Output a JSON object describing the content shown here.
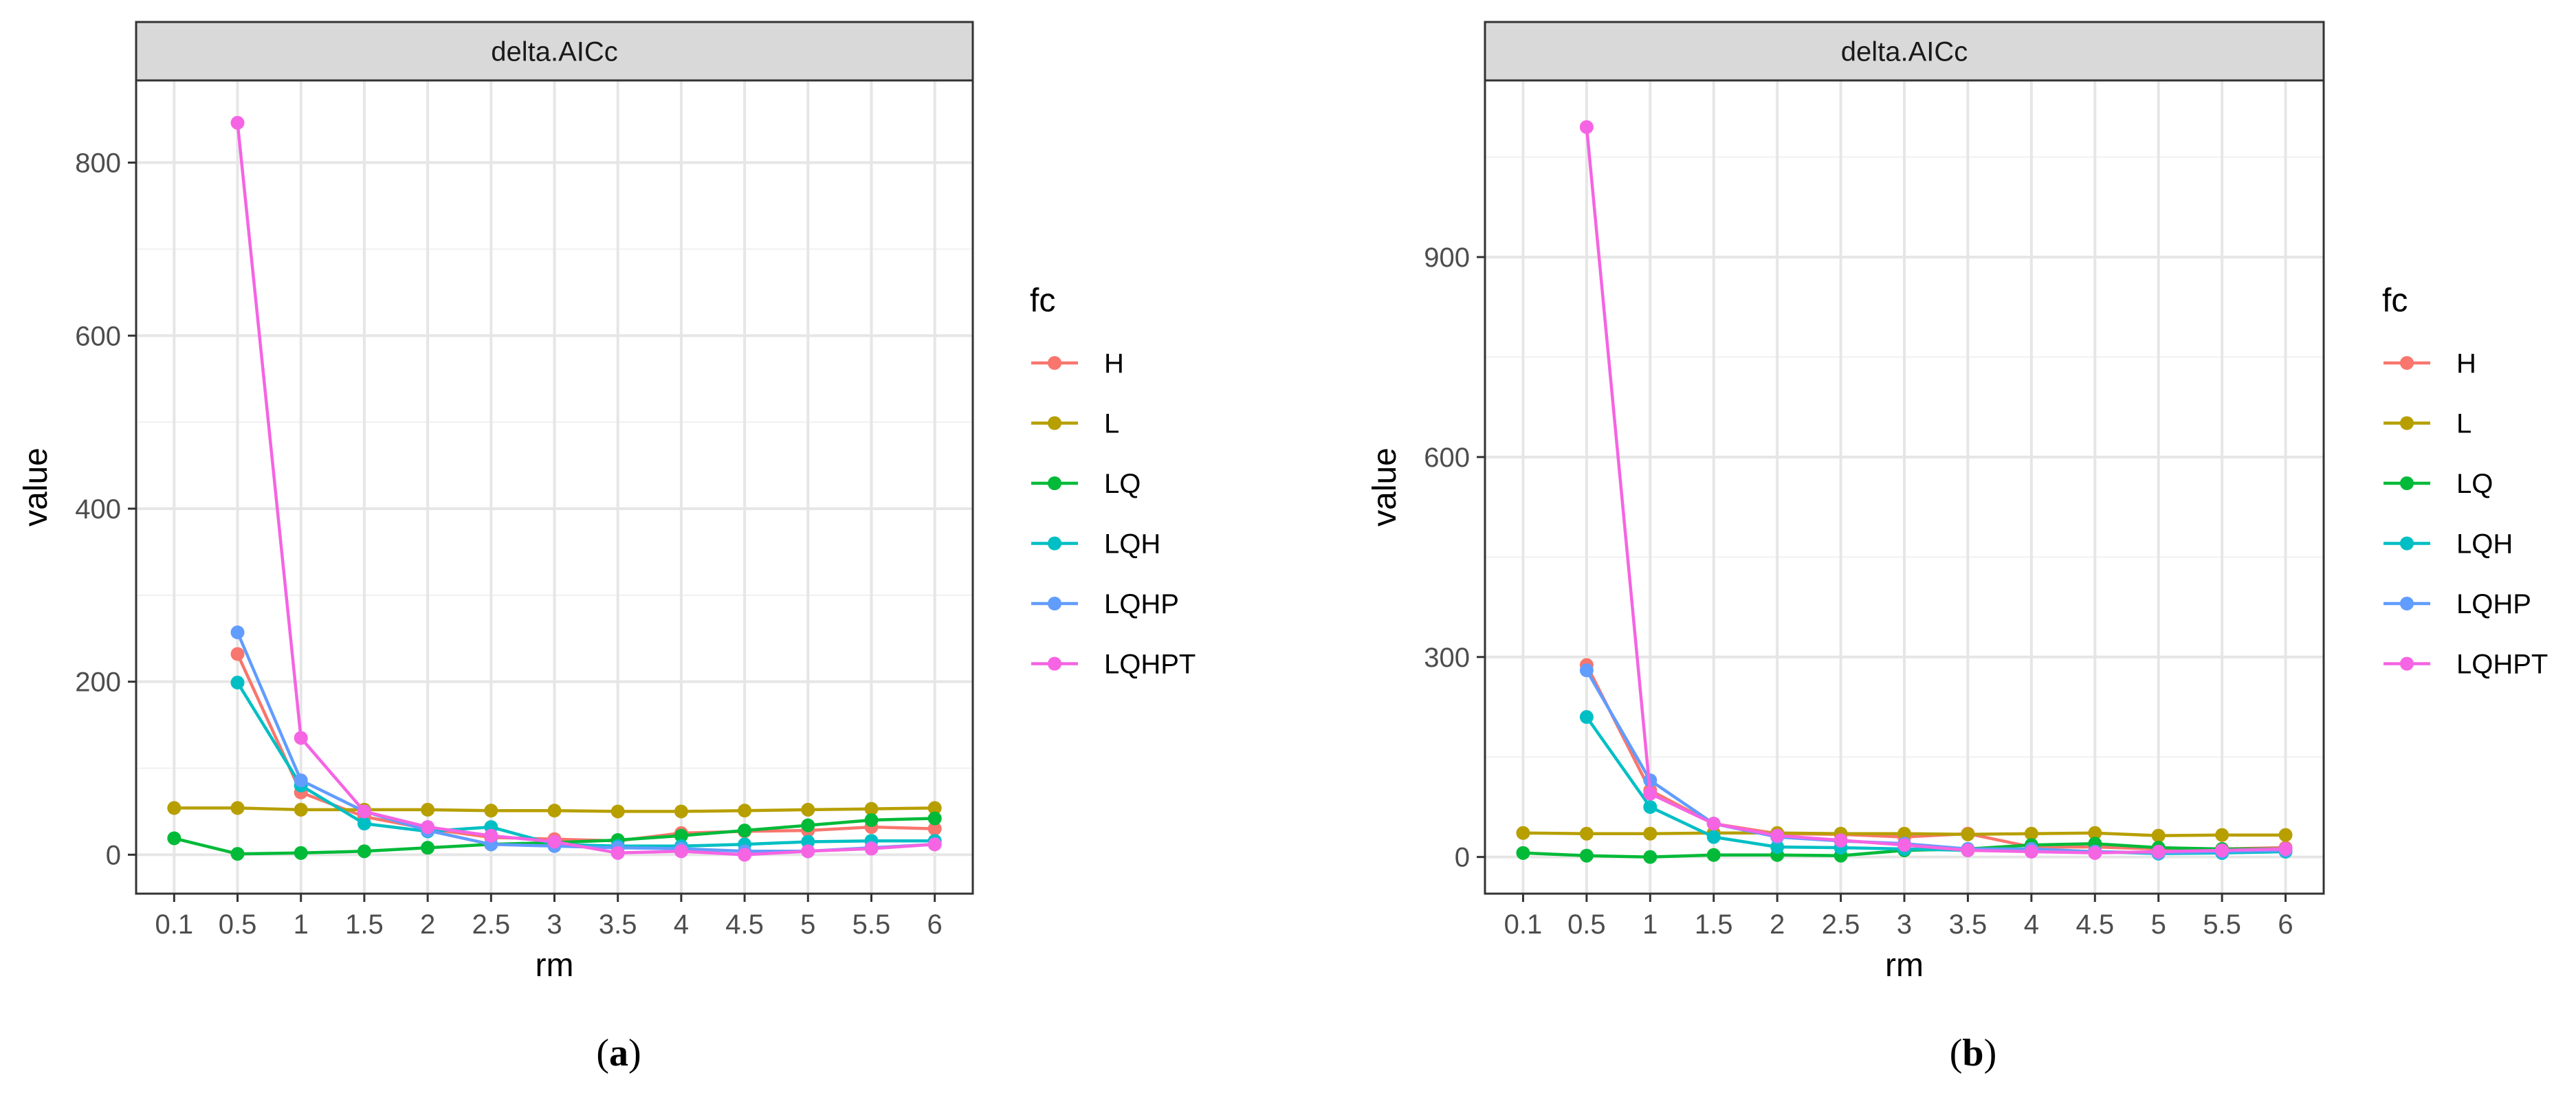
{
  "colors": {
    "H": "#F8766D",
    "L": "#B79F00",
    "LQ": "#00BA38",
    "LQH": "#00BFC4",
    "LQHP": "#619CFF",
    "LQHPT": "#F564E3"
  },
  "captions": [
    {
      "open": "(",
      "letter": "a",
      "close": ")"
    },
    {
      "open": "(",
      "letter": "b",
      "close": ")"
    }
  ],
  "chart_data": [
    {
      "type": "line",
      "title": "delta.AICc",
      "xlabel": "rm",
      "ylabel": "value",
      "legend_title": "fc",
      "legend_position": "right",
      "categories": [
        "0.1",
        "0.5",
        "1",
        "1.5",
        "2",
        "2.5",
        "3",
        "3.5",
        "4",
        "4.5",
        "5",
        "5.5",
        "6"
      ],
      "ylim": [
        -45,
        895
      ],
      "yticks": [
        0,
        200,
        400,
        600,
        800
      ],
      "series": [
        {
          "name": "H",
          "values": [
            null,
            232,
            72,
            44,
            30,
            20,
            18,
            16,
            25,
            27,
            28,
            32,
            30
          ]
        },
        {
          "name": "L",
          "values": [
            54,
            54,
            52,
            52,
            52,
            51,
            51,
            50,
            50,
            51,
            52,
            53,
            54
          ]
        },
        {
          "name": "LQ",
          "values": [
            19,
            1,
            2,
            4,
            8,
            12,
            14,
            17,
            22,
            28,
            34,
            40,
            42
          ]
        },
        {
          "name": "LQH",
          "values": [
            null,
            199,
            80,
            36,
            27,
            32,
            12,
            10,
            10,
            12,
            15,
            16,
            16
          ]
        },
        {
          "name": "LQHP",
          "values": [
            null,
            257,
            86,
            50,
            28,
            12,
            10,
            8,
            7,
            4,
            4,
            8,
            12
          ]
        },
        {
          "name": "LQHPT",
          "values": [
            null,
            846,
            135,
            50,
            32,
            22,
            15,
            2,
            4,
            0,
            4,
            7,
            12
          ]
        }
      ]
    },
    {
      "type": "line",
      "title": "delta.AICc",
      "xlabel": "rm",
      "ylabel": "value",
      "legend_title": "fc",
      "legend_position": "right",
      "categories": [
        "0.1",
        "0.5",
        "1",
        "1.5",
        "2",
        "2.5",
        "3",
        "3.5",
        "4",
        "4.5",
        "5",
        "5.5",
        "6"
      ],
      "ylim": [
        -55,
        1165
      ],
      "yticks": [
        0,
        300,
        600,
        900
      ],
      "series": [
        {
          "name": "H",
          "values": [
            null,
            288,
            100,
            50,
            35,
            34,
            30,
            35,
            15,
            15,
            12,
            12,
            14
          ]
        },
        {
          "name": "L",
          "values": [
            36,
            35,
            35,
            36,
            36,
            35,
            35,
            34,
            35,
            36,
            32,
            33,
            33
          ]
        },
        {
          "name": "LQ",
          "values": [
            6,
            2,
            0,
            3,
            3,
            2,
            10,
            12,
            18,
            20,
            14,
            12,
            12
          ]
        },
        {
          "name": "LQH",
          "values": [
            null,
            210,
            75,
            30,
            15,
            14,
            12,
            10,
            10,
            8,
            5,
            6,
            8
          ]
        },
        {
          "name": "LQHP",
          "values": [
            null,
            280,
            115,
            50,
            30,
            24,
            20,
            12,
            12,
            8,
            6,
            8,
            10
          ]
        },
        {
          "name": "LQHPT",
          "values": [
            null,
            1095,
            95,
            50,
            32,
            25,
            18,
            10,
            8,
            6,
            8,
            10,
            12
          ]
        }
      ]
    }
  ]
}
